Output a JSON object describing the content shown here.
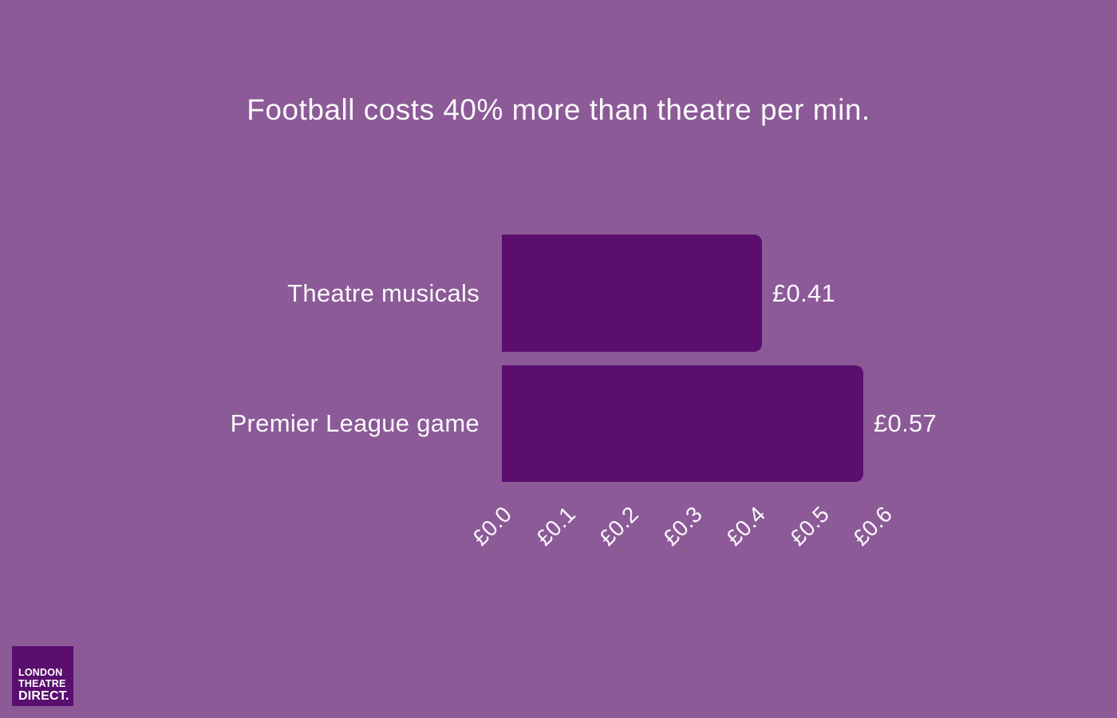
{
  "colors": {
    "background": "#8B5A97",
    "bar": "#5A0E6E",
    "logo_background": "#5A0E6E",
    "text": "#FBF8FB"
  },
  "chart_data": {
    "type": "bar",
    "orientation": "horizontal",
    "title": "Football costs 40% more than theatre per min.",
    "categories": [
      "Theatre musicals",
      "Premier League game"
    ],
    "values": [
      0.41,
      0.57
    ],
    "value_labels": [
      "£0.41",
      "£0.57"
    ],
    "x_ticks": [
      "£0.0",
      "£0.1",
      "£0.2",
      "£0.3",
      "£0.4",
      "£0.5",
      "£0.6"
    ],
    "xlim": [
      0,
      0.6
    ],
    "xlabel": "",
    "ylabel": "",
    "grid": false,
    "legend": false,
    "x_tick_rotation_deg": 45
  },
  "logo": {
    "lines": [
      "LONDON",
      "THEATRE",
      "DIRECT."
    ]
  }
}
